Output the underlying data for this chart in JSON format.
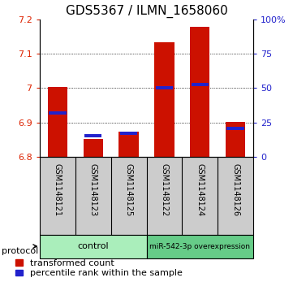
{
  "title": "GDS5367 / ILMN_1658060",
  "samples": [
    "GSM1148121",
    "GSM1148123",
    "GSM1148125",
    "GSM1148122",
    "GSM1148124",
    "GSM1148126"
  ],
  "groups": [
    "control",
    "control",
    "control",
    "miR-542-3p overexpression",
    "miR-542-3p overexpression",
    "miR-542-3p overexpression"
  ],
  "red_values": [
    7.003,
    6.852,
    6.873,
    7.134,
    7.178,
    6.902
  ],
  "blue_values": [
    6.928,
    6.862,
    6.868,
    7.0,
    7.01,
    6.883
  ],
  "y_min": 6.8,
  "y_max": 7.2,
  "y_ticks": [
    6.8,
    6.9,
    7.0,
    7.1,
    7.2
  ],
  "y_tick_labels": [
    "6.8",
    "6.9",
    "7",
    "7.1",
    "7.2"
  ],
  "right_y_ticks": [
    0,
    25,
    50,
    75,
    100
  ],
  "right_y_labels": [
    "0",
    "25",
    "50",
    "75",
    "100%"
  ],
  "left_color": "#dd2200",
  "right_color": "#2222cc",
  "bar_color": "#cc1100",
  "blue_marker_color": "#2222cc",
  "control_color": "#aaeebb",
  "overexp_color": "#66cc88",
  "sample_bg_color": "#cccccc",
  "title_fontsize": 11,
  "tick_fontsize": 8,
  "label_fontsize": 8,
  "legend_fontsize": 8,
  "bar_width": 0.55
}
